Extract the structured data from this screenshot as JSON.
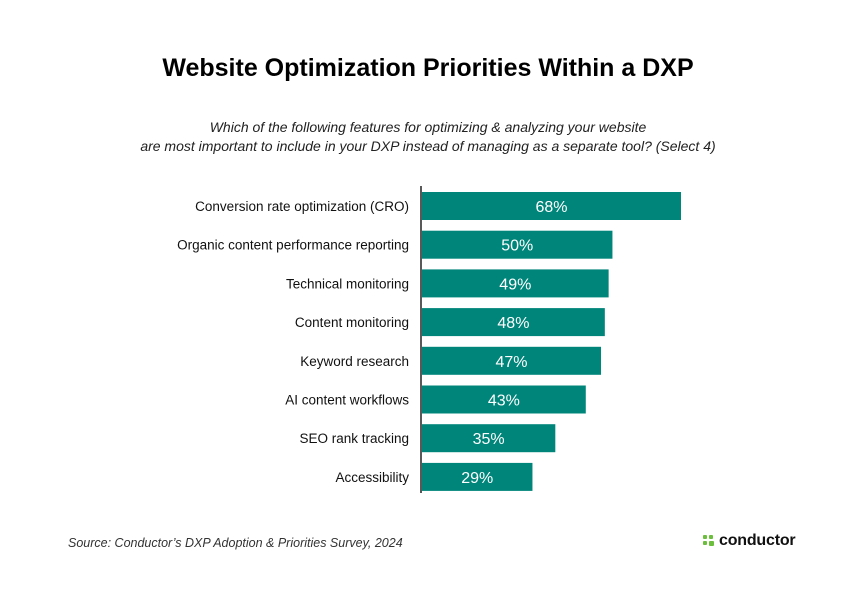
{
  "title": "Website Optimization Priorities Within a DXP",
  "subtitle_line1": "Which of the following features for optimizing & analyzing your website",
  "subtitle_line2": "are most important to include in your DXP instead of managing as a separate tool? (Select 4)",
  "source": "Source: Conductor’s DXP Adoption & Priorities Survey, 2024",
  "logo_text": "conductor",
  "colors": {
    "bar": "#00857a",
    "bar_label": "#ffffff",
    "axis": "#222222",
    "logo_mark": "#6cbf3c"
  },
  "chart_data": {
    "type": "bar",
    "orientation": "horizontal",
    "categories": [
      "Conversion rate optimization (CRO)",
      "Organic content performance reporting",
      "Technical monitoring",
      "Content monitoring",
      "Keyword research",
      "AI content workflows",
      "SEO rank tracking",
      "Accessibility"
    ],
    "values": [
      68,
      50,
      49,
      48,
      47,
      43,
      35,
      29
    ],
    "value_labels": [
      "68%",
      "50%",
      "49%",
      "48%",
      "47%",
      "43%",
      "35%",
      "29%"
    ],
    "unit": "%",
    "xlim": [
      0,
      68
    ],
    "grid": false,
    "legend": "none"
  }
}
